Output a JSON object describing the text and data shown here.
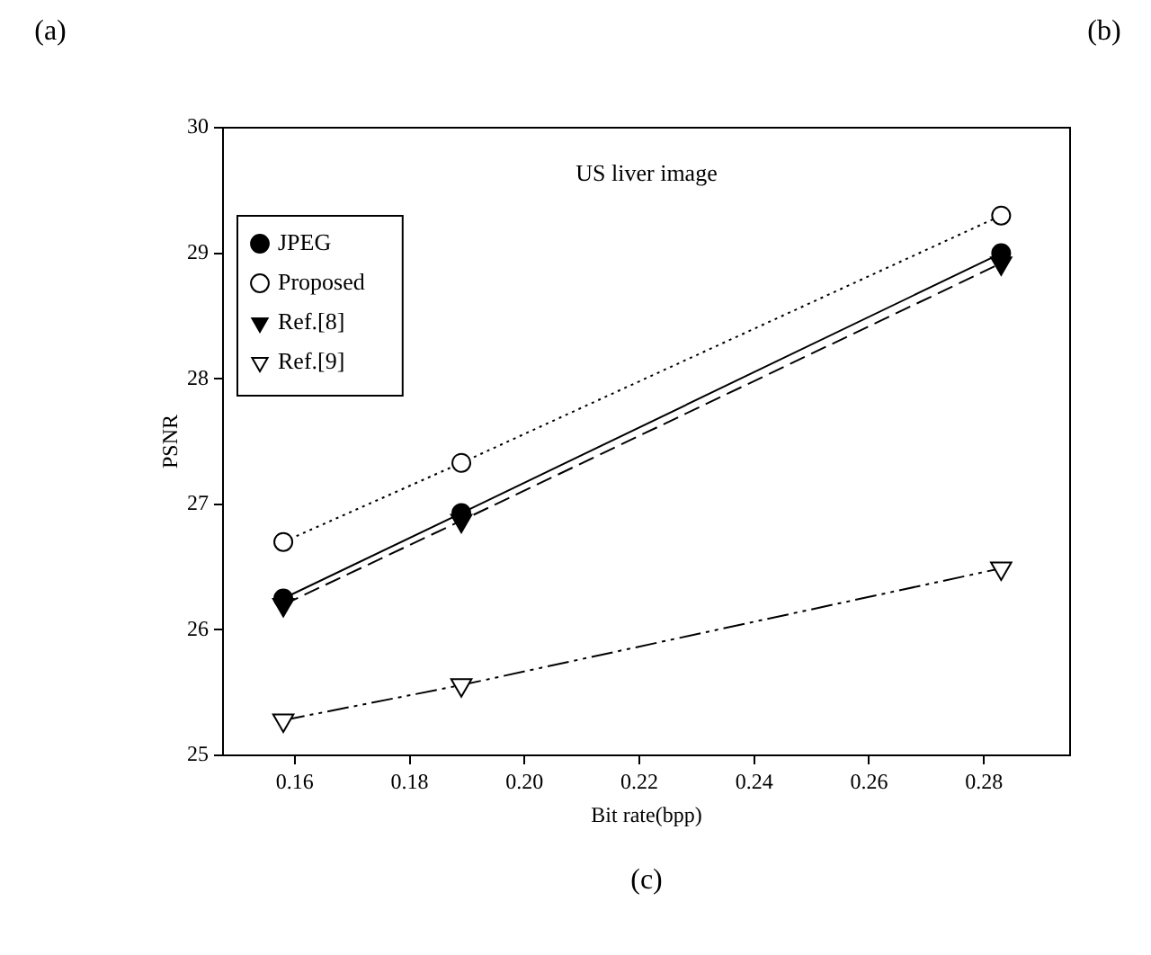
{
  "chart_data": {
    "type": "line",
    "title": "US liver image",
    "xlabel": "Bit rate(bpp)",
    "ylabel": "PSNR",
    "annotations": [
      "(a)",
      "(b)",
      "(c)"
    ],
    "x": [
      0.158,
      0.189,
      0.283
    ],
    "series": [
      {
        "name": "JPEG",
        "color": "#000000",
        "values": [
          26.25,
          26.93,
          29.0
        ],
        "marker": "circle",
        "line_style": "solid"
      },
      {
        "name": "Proposed",
        "color": "#000000",
        "values": [
          26.7,
          27.33,
          29.3
        ],
        "marker": "circle-open",
        "line_style": "dotted"
      },
      {
        "name": "Ref.[8]",
        "color": "#000000",
        "values": [
          26.2,
          26.87,
          28.92
        ],
        "marker": "triangle-down",
        "line_style": "dashed"
      },
      {
        "name": "Ref.[9]",
        "color": "#000000",
        "values": [
          25.28,
          25.56,
          26.49
        ],
        "marker": "triangle-down-open",
        "line_style": "dashdotdot"
      }
    ],
    "xlim": [
      0.1475,
      0.295
    ],
    "xticks": [
      {
        "value": 0.16,
        "label": "0.16"
      },
      {
        "value": 0.18,
        "label": "0.18"
      },
      {
        "value": 0.2,
        "label": "0.20"
      },
      {
        "value": 0.22,
        "label": "0.22"
      },
      {
        "value": 0.24,
        "label": "0.24"
      },
      {
        "value": 0.26,
        "label": "0.26"
      },
      {
        "value": 0.28,
        "label": "0.28"
      }
    ],
    "ylim": [
      25,
      30
    ],
    "yticks": [
      25,
      26,
      27,
      28,
      29,
      30
    ],
    "legend": "top left",
    "grid": false
  }
}
